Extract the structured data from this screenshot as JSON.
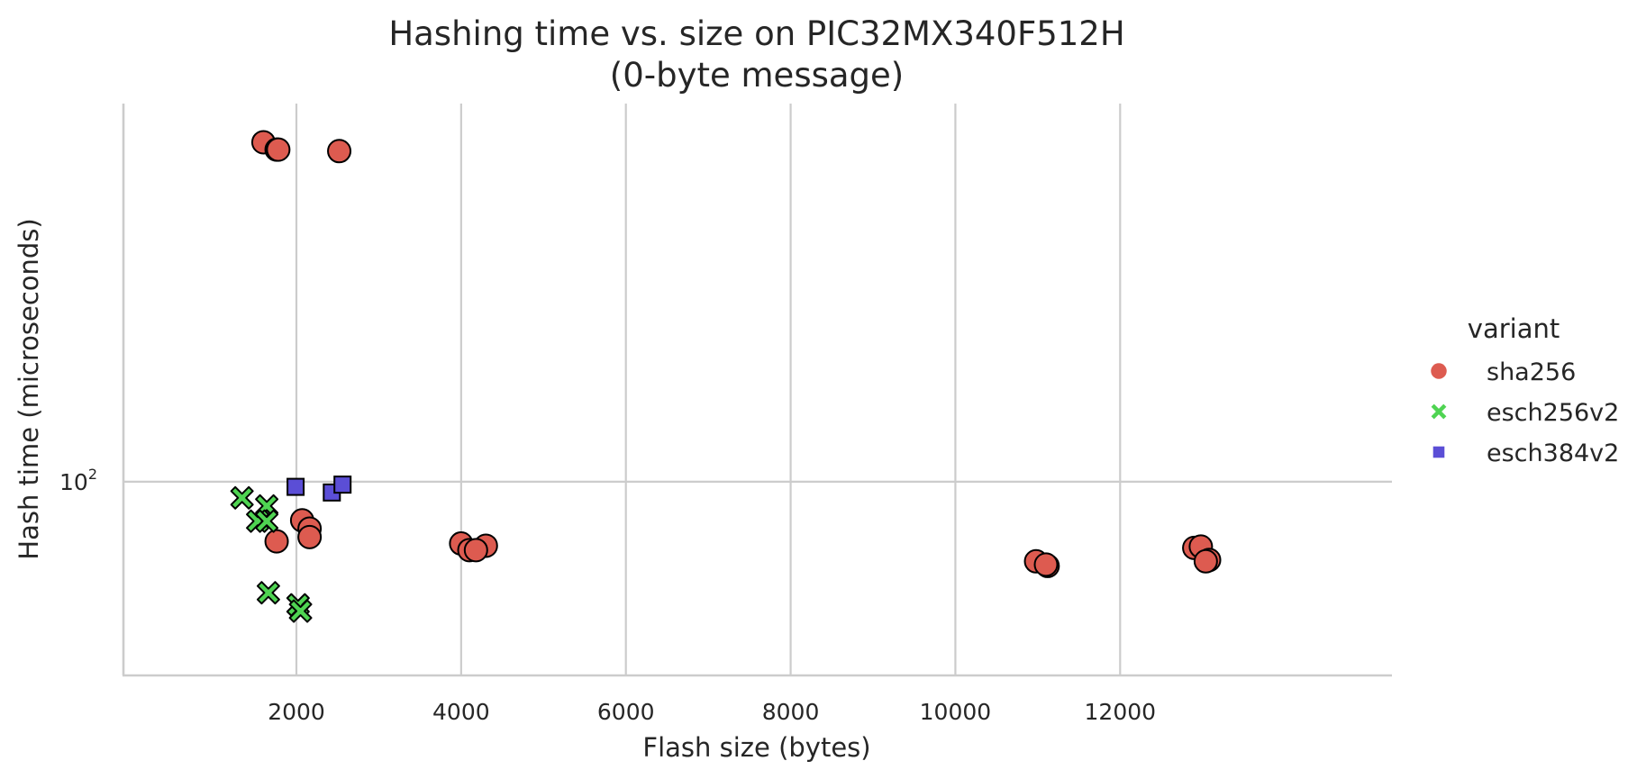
{
  "chart_data": {
    "type": "scatter",
    "title": "Hashing time vs. size on PIC32MX340F512H",
    "subtitle": "(0-byte message)",
    "xlabel": "Flash size (bytes)",
    "ylabel": "Hash time (microseconds)",
    "xlim": [
      -100,
      15300
    ],
    "ylim": [
      59,
      280
    ],
    "yscale": "log",
    "grid": true,
    "x_ticks": [
      {
        "value": 2000,
        "label": "2000"
      },
      {
        "value": 4000,
        "label": "4000"
      },
      {
        "value": 6000,
        "label": "6000"
      },
      {
        "value": 8000,
        "label": "8000"
      },
      {
        "value": 10000,
        "label": "10000"
      },
      {
        "value": 12000,
        "label": "12000"
      }
    ],
    "y_ticks": [
      {
        "value": 100,
        "base": "10",
        "exp": "2"
      }
    ],
    "legend": {
      "title": "variant",
      "placement": "right"
    },
    "series": [
      {
        "name": "sha256",
        "marker": "circle",
        "color": "#dd5b50",
        "points": [
          [
            1600,
            252
          ],
          [
            1760,
            247
          ],
          [
            1780,
            247
          ],
          [
            2520,
            246
          ],
          [
            2070,
            90
          ],
          [
            2160,
            88
          ],
          [
            2160,
            86
          ],
          [
            1760,
            85
          ],
          [
            4000,
            84.5
          ],
          [
            4300,
            84
          ],
          [
            4100,
            83
          ],
          [
            4180,
            83
          ],
          [
            10980,
            80.5
          ],
          [
            11120,
            79.5
          ],
          [
            11100,
            79.8
          ],
          [
            12900,
            83.5
          ],
          [
            12980,
            83.8
          ],
          [
            13080,
            80.8
          ],
          [
            13040,
            80.5
          ]
        ]
      },
      {
        "name": "esch256v2",
        "marker": "x",
        "color": "#4fd452",
        "points": [
          [
            1340,
            95.7
          ],
          [
            1640,
            93.6
          ],
          [
            1530,
            89.8
          ],
          [
            1640,
            89.8
          ],
          [
            1660,
            73.9
          ],
          [
            2020,
            71.5
          ],
          [
            2050,
            70.3
          ]
        ]
      },
      {
        "name": "esch384v2",
        "marker": "square",
        "color": "#5b4ed6",
        "points": [
          [
            1990,
            98.6
          ],
          [
            2430,
            97.1
          ],
          [
            2560,
            99.2
          ]
        ]
      }
    ]
  }
}
